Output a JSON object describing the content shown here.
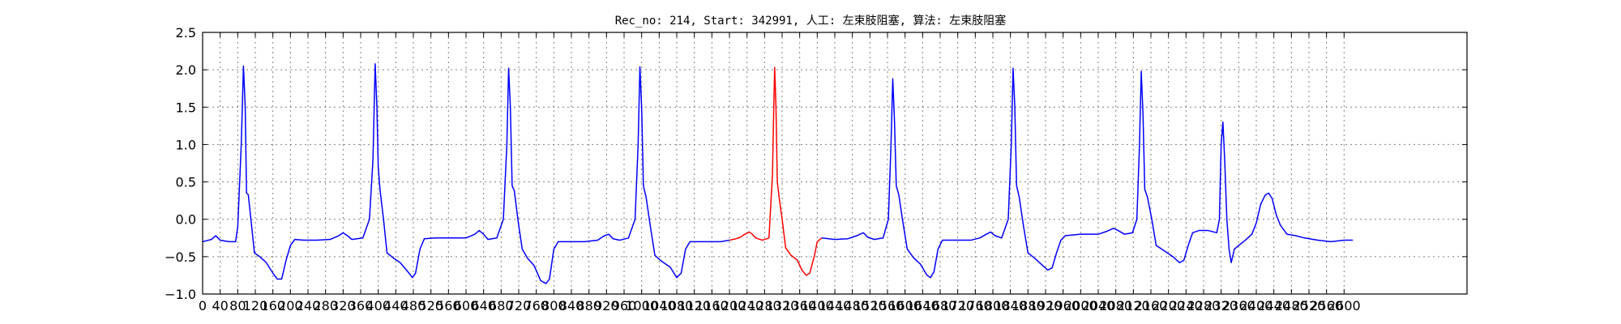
{
  "chart_data": {
    "type": "line",
    "title": "Rec_no: 214, Start: 342991, 人工: 左束肢阻塞, 算法: 左束肢阻塞",
    "xlabel": "",
    "ylabel": "",
    "xlim": [
      0,
      2880
    ],
    "ylim": [
      -1.0,
      2.5
    ],
    "grid": true,
    "yticks": [
      -1.0,
      -0.5,
      0.0,
      0.5,
      1.0,
      1.5,
      2.0,
      2.5
    ],
    "ytick_labels": [
      "−1.0",
      "−0.5",
      "0.0",
      "0.5",
      "1.0",
      "1.5",
      "2.0",
      "2.5"
    ],
    "xtick_step": 40,
    "xtick_labels": [
      "0",
      "40",
      "80",
      "120",
      "160",
      "200",
      "240",
      "280",
      "320",
      "360",
      "400",
      "440",
      "480",
      "520",
      "560",
      "600",
      "640",
      "680",
      "720",
      "760",
      "800",
      "840",
      "880",
      "920",
      "960",
      "1000",
      "1040",
      "1080",
      "1120",
      "1160",
      "1200",
      "1240",
      "1280",
      "1320",
      "1360",
      "1400",
      "1440",
      "1480",
      "1520",
      "1560",
      "1600",
      "1640",
      "1680",
      "1720",
      "1760",
      "1800",
      "1840",
      "1880",
      "1920",
      "1960",
      "2000",
      "2040",
      "2080",
      "2120",
      "2160",
      "2200",
      "2240",
      "2280",
      "2320",
      "2360",
      "2400",
      "2440",
      "2480",
      "2520",
      "2560",
      "2600"
    ],
    "series": [
      {
        "color": "#0000ff",
        "points": [
          [
            0,
            -0.3
          ],
          [
            20,
            -0.27
          ],
          [
            30,
            -0.22
          ],
          [
            40,
            -0.28
          ],
          [
            60,
            -0.3
          ],
          [
            75,
            -0.3
          ],
          [
            80,
            -0.1
          ],
          [
            88,
            1.0
          ],
          [
            93,
            2.05
          ],
          [
            97,
            1.5
          ],
          [
            100,
            0.35
          ],
          [
            104,
            0.33
          ],
          [
            110,
            0.0
          ],
          [
            118,
            -0.45
          ],
          [
            130,
            -0.5
          ],
          [
            145,
            -0.58
          ],
          [
            160,
            -0.72
          ],
          [
            170,
            -0.8
          ],
          [
            180,
            -0.8
          ],
          [
            190,
            -0.55
          ],
          [
            200,
            -0.35
          ],
          [
            210,
            -0.27
          ],
          [
            230,
            -0.28
          ],
          [
            260,
            -0.28
          ],
          [
            290,
            -0.27
          ],
          [
            310,
            -0.22
          ],
          [
            320,
            -0.18
          ],
          [
            330,
            -0.22
          ],
          [
            340,
            -0.27
          ],
          [
            365,
            -0.25
          ],
          [
            380,
            0.0
          ],
          [
            388,
            0.8
          ],
          [
            393,
            2.08
          ],
          [
            397,
            1.5
          ],
          [
            400,
            0.7
          ],
          [
            404,
            0.4
          ],
          [
            412,
            0.0
          ],
          [
            420,
            -0.45
          ],
          [
            435,
            -0.52
          ],
          [
            450,
            -0.58
          ],
          [
            470,
            -0.72
          ],
          [
            478,
            -0.78
          ],
          [
            485,
            -0.72
          ],
          [
            495,
            -0.4
          ],
          [
            505,
            -0.26
          ],
          [
            530,
            -0.25
          ],
          [
            580,
            -0.25
          ],
          [
            600,
            -0.25
          ],
          [
            620,
            -0.2
          ],
          [
            630,
            -0.15
          ],
          [
            640,
            -0.2
          ],
          [
            650,
            -0.27
          ],
          [
            670,
            -0.25
          ],
          [
            685,
            0.0
          ],
          [
            693,
            1.0
          ],
          [
            697,
            2.02
          ],
          [
            701,
            1.5
          ],
          [
            705,
            0.45
          ],
          [
            710,
            0.38
          ],
          [
            718,
            0.0
          ],
          [
            728,
            -0.4
          ],
          [
            740,
            -0.52
          ],
          [
            755,
            -0.62
          ],
          [
            770,
            -0.82
          ],
          [
            782,
            -0.86
          ],
          [
            790,
            -0.8
          ],
          [
            800,
            -0.4
          ],
          [
            810,
            -0.3
          ],
          [
            830,
            -0.3
          ],
          [
            870,
            -0.3
          ],
          [
            900,
            -0.28
          ],
          [
            915,
            -0.22
          ],
          [
            925,
            -0.2
          ],
          [
            935,
            -0.26
          ],
          [
            950,
            -0.28
          ],
          [
            970,
            -0.25
          ],
          [
            985,
            0.0
          ],
          [
            992,
            1.0
          ],
          [
            996,
            2.04
          ],
          [
            1000,
            1.5
          ],
          [
            1004,
            0.45
          ],
          [
            1010,
            0.3
          ],
          [
            1020,
            -0.1
          ],
          [
            1030,
            -0.48
          ],
          [
            1045,
            -0.56
          ],
          [
            1065,
            -0.64
          ],
          [
            1080,
            -0.78
          ],
          [
            1090,
            -0.72
          ],
          [
            1100,
            -0.4
          ],
          [
            1110,
            -0.3
          ],
          [
            1130,
            -0.3
          ],
          [
            1180,
            -0.3
          ],
          [
            1200,
            -0.28
          ]
        ]
      },
      {
        "color": "#ff0000",
        "points": [
          [
            1200,
            -0.28
          ],
          [
            1215,
            -0.26
          ],
          [
            1225,
            -0.24
          ],
          [
            1235,
            -0.2
          ],
          [
            1245,
            -0.17
          ],
          [
            1252,
            -0.2
          ],
          [
            1260,
            -0.25
          ],
          [
            1275,
            -0.28
          ],
          [
            1290,
            -0.25
          ],
          [
            1298,
            0.6
          ],
          [
            1301,
            1.5
          ],
          [
            1303,
            2.03
          ],
          [
            1306,
            1.5
          ],
          [
            1309,
            0.5
          ],
          [
            1313,
            0.3
          ],
          [
            1320,
            0.0
          ],
          [
            1328,
            -0.38
          ],
          [
            1340,
            -0.48
          ],
          [
            1355,
            -0.55
          ],
          [
            1365,
            -0.68
          ],
          [
            1375,
            -0.75
          ],
          [
            1383,
            -0.72
          ],
          [
            1393,
            -0.5
          ],
          [
            1400,
            -0.3
          ],
          [
            1410,
            -0.25
          ]
        ]
      },
      {
        "color": "#0000ff",
        "points": [
          [
            1410,
            -0.25
          ],
          [
            1440,
            -0.27
          ],
          [
            1470,
            -0.26
          ],
          [
            1490,
            -0.22
          ],
          [
            1505,
            -0.18
          ],
          [
            1515,
            -0.24
          ],
          [
            1530,
            -0.27
          ],
          [
            1550,
            -0.25
          ],
          [
            1562,
            0.0
          ],
          [
            1568,
            1.0
          ],
          [
            1572,
            1.88
          ],
          [
            1576,
            1.3
          ],
          [
            1580,
            0.45
          ],
          [
            1586,
            0.32
          ],
          [
            1594,
            0.0
          ],
          [
            1605,
            -0.4
          ],
          [
            1620,
            -0.52
          ],
          [
            1635,
            -0.6
          ],
          [
            1650,
            -0.75
          ],
          [
            1658,
            -0.78
          ],
          [
            1666,
            -0.7
          ],
          [
            1675,
            -0.4
          ],
          [
            1685,
            -0.28
          ],
          [
            1710,
            -0.28
          ],
          [
            1750,
            -0.28
          ],
          [
            1770,
            -0.25
          ],
          [
            1785,
            -0.2
          ],
          [
            1795,
            -0.17
          ],
          [
            1805,
            -0.22
          ],
          [
            1820,
            -0.25
          ],
          [
            1835,
            0.0
          ],
          [
            1842,
            1.0
          ],
          [
            1846,
            2.02
          ],
          [
            1850,
            1.5
          ],
          [
            1854,
            0.45
          ],
          [
            1860,
            0.3
          ],
          [
            1870,
            -0.1
          ],
          [
            1880,
            -0.45
          ],
          [
            1895,
            -0.52
          ],
          [
            1910,
            -0.6
          ],
          [
            1925,
            -0.68
          ],
          [
            1935,
            -0.65
          ],
          [
            1945,
            -0.45
          ],
          [
            1955,
            -0.28
          ],
          [
            1965,
            -0.22
          ],
          [
            2000,
            -0.2
          ],
          [
            2040,
            -0.2
          ],
          [
            2060,
            -0.16
          ],
          [
            2075,
            -0.12
          ],
          [
            2085,
            -0.15
          ],
          [
            2100,
            -0.2
          ],
          [
            2118,
            -0.18
          ],
          [
            2128,
            0.0
          ],
          [
            2134,
            1.0
          ],
          [
            2138,
            1.98
          ],
          [
            2142,
            1.4
          ],
          [
            2146,
            0.4
          ],
          [
            2152,
            0.3
          ],
          [
            2162,
            0.0
          ],
          [
            2172,
            -0.35
          ],
          [
            2190,
            -0.42
          ],
          [
            2210,
            -0.5
          ],
          [
            2225,
            -0.58
          ],
          [
            2235,
            -0.55
          ],
          [
            2245,
            -0.35
          ],
          [
            2255,
            -0.18
          ],
          [
            2270,
            -0.15
          ],
          [
            2290,
            -0.15
          ],
          [
            2310,
            -0.18
          ],
          [
            2316,
            0.0
          ],
          [
            2320,
            1.0
          ],
          [
            2324,
            1.3
          ],
          [
            2328,
            0.8
          ],
          [
            2333,
            0.0
          ],
          [
            2338,
            -0.4
          ],
          [
            2343,
            -0.58
          ],
          [
            2350,
            -0.4
          ],
          [
            2360,
            -0.35
          ],
          [
            2375,
            -0.28
          ],
          [
            2390,
            -0.2
          ],
          [
            2400,
            -0.05
          ],
          [
            2410,
            0.2
          ],
          [
            2420,
            0.32
          ],
          [
            2428,
            0.35
          ],
          [
            2436,
            0.28
          ],
          [
            2446,
            0.05
          ],
          [
            2455,
            -0.08
          ],
          [
            2470,
            -0.2
          ],
          [
            2490,
            -0.22
          ],
          [
            2510,
            -0.25
          ],
          [
            2540,
            -0.28
          ],
          [
            2570,
            -0.3
          ],
          [
            2600,
            -0.28
          ],
          [
            2620,
            -0.28
          ]
        ]
      }
    ]
  }
}
